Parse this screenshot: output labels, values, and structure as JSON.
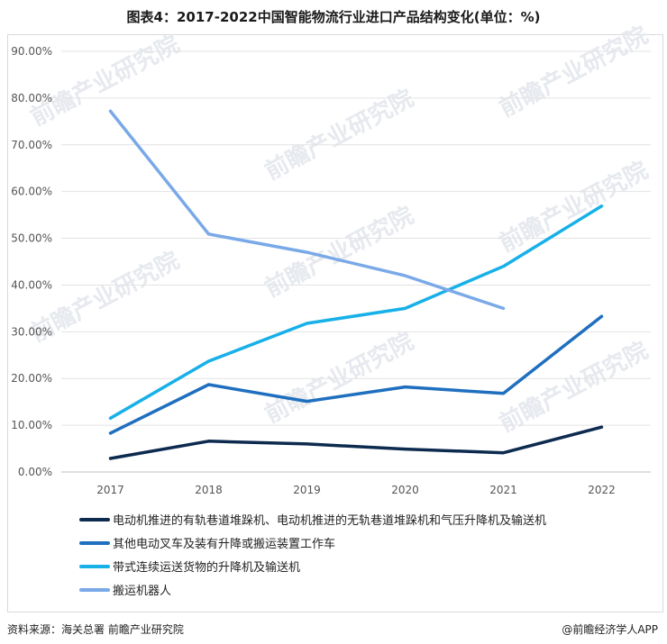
{
  "title": "图表4：2017-2022中国智能物流行业进口产品结构变化(单位：%)",
  "footer": {
    "source": "资料来源：海关总署 前瞻产业研究院",
    "brand": "@前瞻经济学人APP"
  },
  "watermark": "前瞻产业研究院",
  "colors": {
    "series1": "#0d2a4f",
    "series2": "#1f6fbf",
    "series3": "#17b0e8",
    "series4": "#7aa9e8",
    "grid": "#e3e3e3"
  },
  "chart_data": {
    "type": "line",
    "title": "图表4：2017-2022中国智能物流行业进口产品结构变化(单位：%)",
    "xlabel": "",
    "ylabel": "",
    "x": [
      "2017",
      "2018",
      "2019",
      "2020",
      "2021",
      "2022"
    ],
    "ylim": [
      0,
      90
    ],
    "yticks": [
      "0.00%",
      "10.00%",
      "20.00%",
      "30.00%",
      "40.00%",
      "50.00%",
      "60.00%",
      "70.00%",
      "80.00%",
      "90.00%"
    ],
    "grid": true,
    "legend_position": "bottom",
    "series": [
      {
        "name": "电动机推进的有轨巷道堆跺机、电动机推进的无轨巷道堆跺机和气压升降机及输送机",
        "values": [
          2.9,
          6.6,
          6.0,
          4.9,
          4.1,
          9.6
        ]
      },
      {
        "name": "其他电动叉车及装有升降或搬运装置工作车",
        "values": [
          8.3,
          18.7,
          15.1,
          18.2,
          16.8,
          33.3
        ]
      },
      {
        "name": "带式连续运送货物的升降机及输送机",
        "values": [
          11.5,
          23.7,
          31.8,
          35.0,
          44.0,
          56.9
        ]
      },
      {
        "name": "搬运机器人",
        "values": [
          77.2,
          50.9,
          47.0,
          42.0,
          35.0,
          null
        ]
      }
    ]
  }
}
